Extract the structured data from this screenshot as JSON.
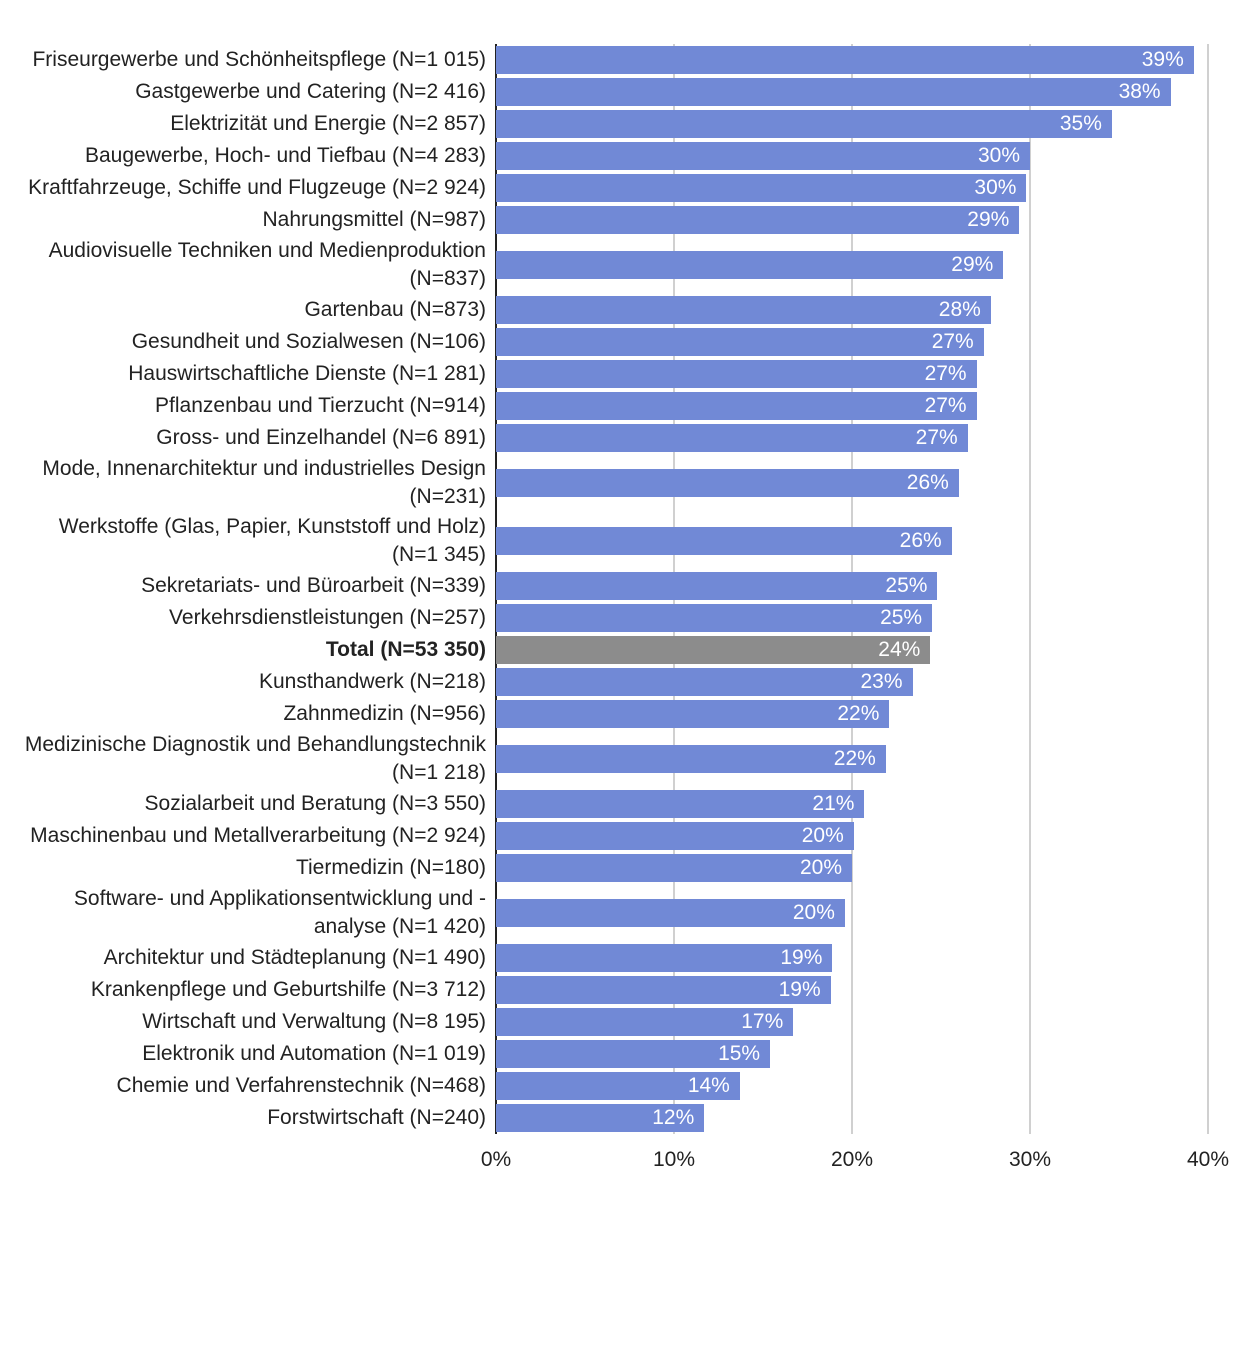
{
  "chart_data": {
    "type": "bar",
    "orientation": "horizontal",
    "categories": [
      "Friseurgewerbe und Schönheitspflege (N=1 015)",
      "Gastgewerbe und Catering (N=2 416)",
      "Elektrizität und Energie (N=2 857)",
      "Baugewerbe, Hoch- und Tiefbau (N=4 283)",
      "Kraftfahrzeuge, Schiffe und Flugzeuge (N=2 924)",
      "Nahrungsmittel (N=987)",
      "Audiovisuelle Techniken und Medienproduktion (N=837)",
      "Gartenbau (N=873)",
      "Gesundheit und Sozialwesen (N=106)",
      "Hauswirtschaftliche Dienste (N=1 281)",
      "Pflanzenbau und Tierzucht (N=914)",
      "Gross- und Einzelhandel (N=6 891)",
      "Mode, Innenarchitektur und industrielles Design (N=231)",
      "Werkstoffe (Glas, Papier, Kunststoff und Holz) (N=1 345)",
      "Sekretariats- und Büroarbeit (N=339)",
      "Verkehrsdienstleistungen (N=257)",
      "Total (N=53 350)",
      "Kunsthandwerk (N=218)",
      "Zahnmedizin (N=956)",
      "Medizinische Diagnostik und Behandlungstechnik (N=1 218)",
      "Sozialarbeit und Beratung (N=3 550)",
      "Maschinenbau und Metallverarbeitung (N=2 924)",
      "Tiermedizin (N=180)",
      "Software- und Applikationsentwicklung und -analyse (N=1 420)",
      "Architektur und Städteplanung (N=1 490)",
      "Krankenpflege und Geburtshilfe (N=3 712)",
      "Wirtschaft und Verwaltung (N=8 195)",
      "Elektronik und Automation (N=1 019)",
      "Chemie und Verfahrenstechnik (N=468)",
      "Forstwirtschaft (N=240)"
    ],
    "values": [
      39.2,
      37.9,
      34.6,
      30.0,
      29.8,
      29.4,
      28.5,
      27.8,
      27.4,
      27.0,
      27.0,
      26.5,
      26.0,
      25.6,
      24.8,
      24.5,
      24.4,
      23.4,
      22.1,
      21.9,
      20.7,
      20.1,
      20.0,
      19.6,
      18.9,
      18.8,
      16.7,
      15.4,
      13.7,
      11.7
    ],
    "value_labels": [
      "39%",
      "38%",
      "35%",
      "30%",
      "30%",
      "29%",
      "29%",
      "28%",
      "27%",
      "27%",
      "27%",
      "27%",
      "26%",
      "26%",
      "25%",
      "25%",
      "24%",
      "23%",
      "22%",
      "22%",
      "21%",
      "20%",
      "20%",
      "20%",
      "19%",
      "19%",
      "17%",
      "15%",
      "14%",
      "12%"
    ],
    "colors": [
      "#7189d6",
      "#7189d6",
      "#7189d6",
      "#7189d6",
      "#7189d6",
      "#7189d6",
      "#7189d6",
      "#7189d6",
      "#7189d6",
      "#7189d6",
      "#7189d6",
      "#7189d6",
      "#7189d6",
      "#7189d6",
      "#7189d6",
      "#7189d6",
      "#8c8c8c",
      "#7189d6",
      "#7189d6",
      "#7189d6",
      "#7189d6",
      "#7189d6",
      "#7189d6",
      "#7189d6",
      "#7189d6",
      "#7189d6",
      "#7189d6",
      "#7189d6",
      "#7189d6",
      "#7189d6"
    ],
    "xlim": [
      0,
      40
    ],
    "xticks": [
      {
        "value": 0,
        "label": "0%"
      },
      {
        "value": 10,
        "label": "10%"
      },
      {
        "value": 20,
        "label": "20%"
      },
      {
        "value": 30,
        "label": "30%"
      },
      {
        "value": 40,
        "label": "40%"
      }
    ],
    "grid": true
  }
}
